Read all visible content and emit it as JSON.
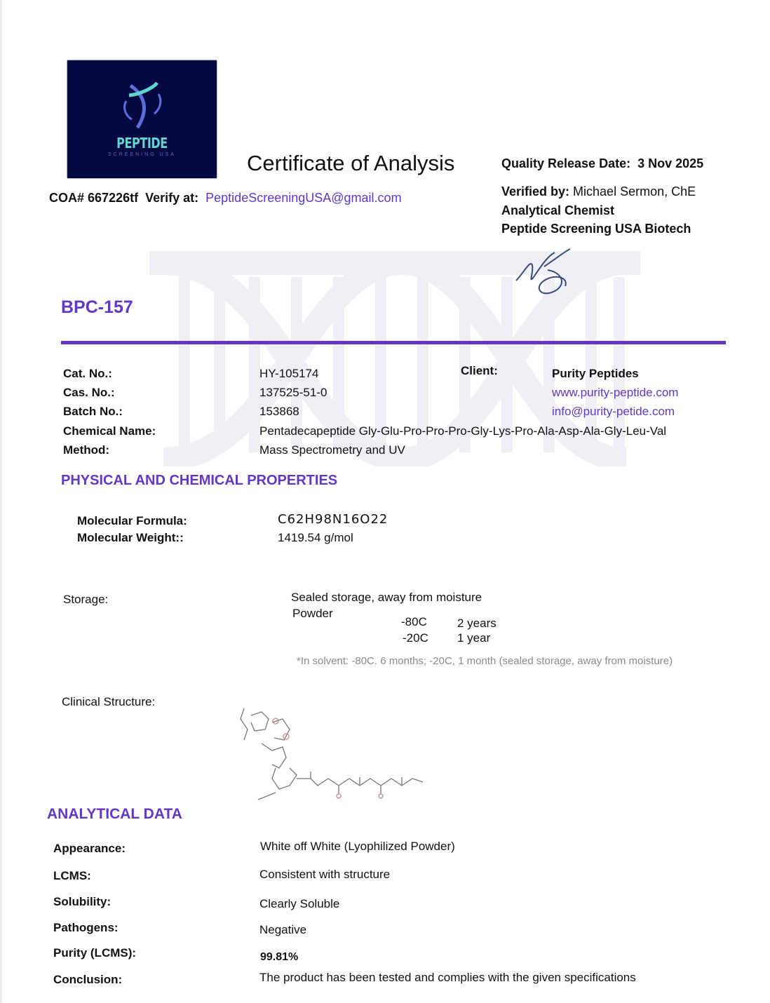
{
  "logo": {
    "text": "PEPTIDE",
    "subtext": "SCREENING USA"
  },
  "header": {
    "title": "Certificate of Analysis",
    "coa_label": "COA# 667226tf",
    "verify_label": "Verify at:",
    "verify_email": "PeptideScreeningUSA@gmail.com",
    "release_label": "Quality Release Date:",
    "release_date": "3 Nov 2025",
    "verified_label": "Verified by:",
    "verified_name": "Michael Sermon, ChE",
    "role": "Analytical Chemist",
    "company": "Peptide Screening USA Biotech"
  },
  "product": {
    "name": "BPC-157"
  },
  "info": {
    "rows": [
      {
        "label": "Cat. No.:",
        "value": "HY-105174"
      },
      {
        "label": "Cas. No.:",
        "value": "137525-51-0"
      },
      {
        "label": "Batch No.:",
        "value": "153868"
      },
      {
        "label": "Chemical Name:",
        "value": "Pentadecapeptide Gly-Glu-Pro-Pro-Pro-Gly-Lys-Pro-Ala-Asp-Ala-Gly-Leu-Val"
      },
      {
        "label": "Method:",
        "value": "Mass Spectrometry and UV"
      }
    ],
    "client_label": "Client:",
    "client_name": "Purity Peptides",
    "client_web": "www.purity-peptide.com",
    "client_email": "info@purity-petide.com"
  },
  "physical": {
    "heading": "PHYSICAL AND CHEMICAL PROPERTIES",
    "formula_label": "Molecular Formula:",
    "formula": "C62H98N16O22",
    "weight_label": "Molecular Weight::",
    "weight": "1419.54 g/mol",
    "storage_label": "Storage:",
    "storage_note": "Sealed storage, away from moisture",
    "powder": "Powder",
    "temp1": "-80C",
    "dur1": "2 years",
    "temp2": "-20C",
    "dur2": "1 year",
    "solvent_note": "*In solvent: -80C. 6 months; -20C, 1 month (sealed storage, away from moisture)",
    "structure_label": "Clinical Structure:"
  },
  "analytical": {
    "heading": "ANALYTICAL DATA",
    "rows": [
      {
        "label": "Appearance:",
        "value": "White off White (Lyophilized Powder)"
      },
      {
        "label": "LCMS:",
        "value": "Consistent with structure"
      },
      {
        "label": "Solubility:",
        "value": "Clearly Soluble"
      },
      {
        "label": "Pathogens:",
        "value": "Negative"
      },
      {
        "label": "Purity (LCMS):",
        "value": "99.81%"
      },
      {
        "label": "Conclusion:",
        "value": "The product has been tested and complies with the given specifications"
      }
    ]
  },
  "colors": {
    "accent": "#6237c8",
    "logo_bg": "#06093f"
  }
}
